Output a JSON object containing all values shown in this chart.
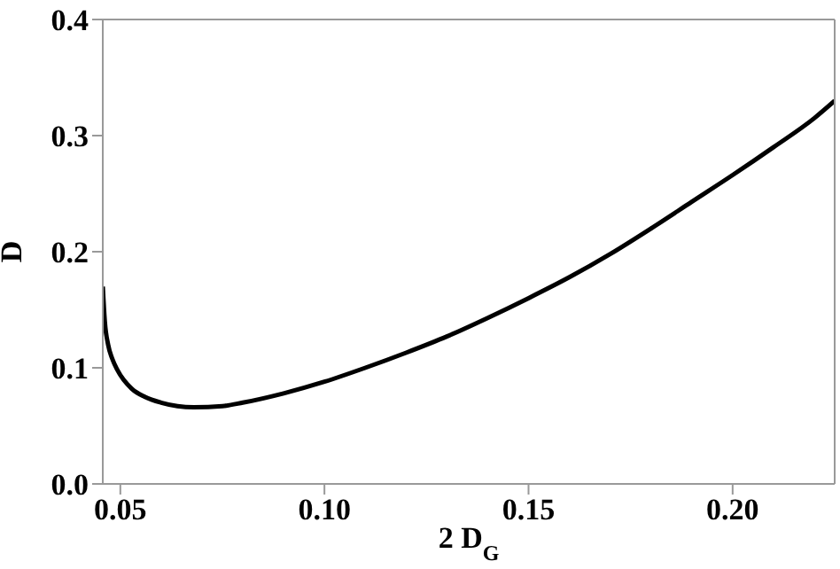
{
  "chart_data": {
    "type": "line",
    "xlabel": "2 D$_{G}$",
    "ylabel": "D",
    "x": [
      0.0457,
      0.0462,
      0.047,
      0.048,
      0.0493,
      0.0528,
      0.056,
      0.06,
      0.068,
      0.075,
      0.08,
      0.09,
      0.1,
      0.11,
      0.12,
      0.13,
      0.14,
      0.15,
      0.16,
      0.17,
      0.18,
      0.19,
      0.2,
      0.21,
      0.22,
      0.225
    ],
    "series": [
      {
        "color": "#000000",
        "values": [
          0.17,
          0.14,
          0.12,
          0.108,
          0.098,
          0.082,
          0.075,
          0.07,
          0.066,
          0.067,
          0.07,
          0.078,
          0.088,
          0.1,
          0.113,
          0.127,
          0.143,
          0.16,
          0.178,
          0.198,
          0.22,
          0.243,
          0.266,
          0.29,
          0.315,
          0.33
        ]
      }
    ],
    "xlim": [
      0.0457,
      0.225
    ],
    "xticks": [
      {
        "value": 0.05,
        "label": "0.05"
      },
      {
        "value": 0.1,
        "label": "0.10"
      },
      {
        "value": 0.15,
        "label": "0.15"
      },
      {
        "value": 0.2,
        "label": "0.20"
      }
    ],
    "ylim": [
      0,
      0.4
    ],
    "yticks": [
      {
        "value": 0,
        "label": "0.0"
      },
      {
        "value": 0.1,
        "label": "0.1"
      },
      {
        "value": 0.2,
        "label": "0.2"
      },
      {
        "value": 0.3,
        "label": "0.3"
      },
      {
        "value": 0.4,
        "label": "0.4"
      }
    ],
    "grid": false,
    "legend": false,
    "marker": "none",
    "line_style": "solid"
  }
}
